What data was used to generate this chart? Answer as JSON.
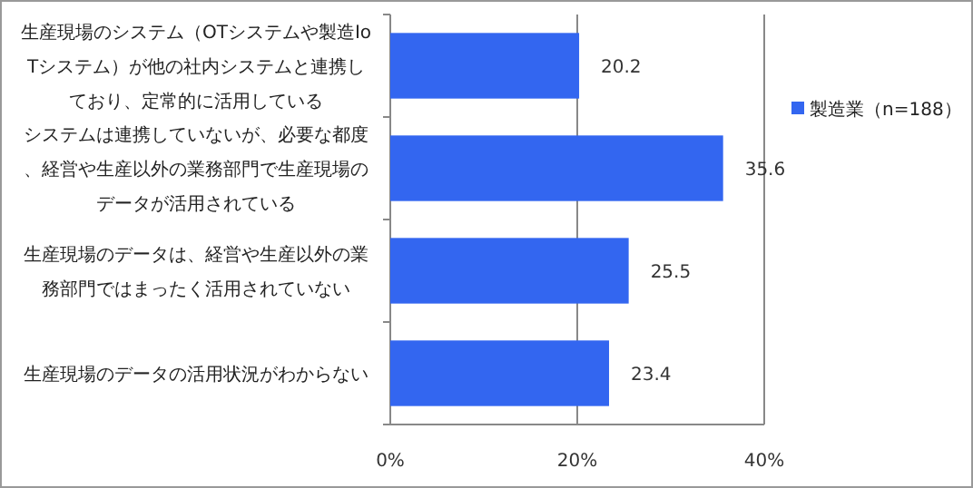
{
  "chart_data": {
    "type": "bar",
    "orientation": "horizontal",
    "categories": [
      "生産現場のシステム（OTシステムや製造IoTシステム）が他の社内システムと連携しており、定常的に活用している",
      "システムは連携していないが、必要な都度、経営や生産以外の業務部門で生産現場のデータが活用されている",
      "生産現場のデータは、経営や生産以外の業務部門ではまったく活用されていない",
      "生産現場のデータの活用状況がわからない"
    ],
    "series": [
      {
        "name": "製造業（n=188）",
        "color": "#3366f0",
        "values": [
          20.2,
          35.6,
          25.5,
          23.4
        ]
      }
    ],
    "xlim": [
      0,
      40
    ],
    "xticks": [
      {
        "value": 0,
        "label": "0%"
      },
      {
        "value": 20,
        "label": "20%"
      },
      {
        "value": 40,
        "label": "40%"
      }
    ],
    "grid": "x",
    "legend": "right",
    "data_labels": true
  }
}
